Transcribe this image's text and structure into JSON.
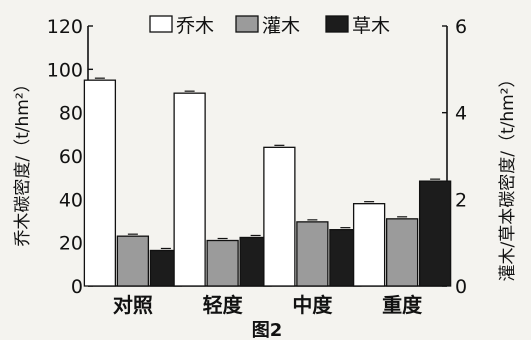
{
  "chart_data": {
    "type": "bar",
    "caption": "图2",
    "categories": [
      "对照",
      "轻度",
      "中度",
      "重度"
    ],
    "series": [
      {
        "name": "乔木",
        "axis": "left",
        "color": "#ffffff",
        "values": [
          95,
          89,
          64,
          38
        ]
      },
      {
        "name": "灌木",
        "axis": "right",
        "color": "#9b9b9b",
        "values": [
          1.15,
          1.05,
          1.48,
          1.55
        ]
      },
      {
        "name": "草木",
        "axis": "right",
        "color": "#1c1c1c",
        "values": [
          0.82,
          1.12,
          1.3,
          2.42
        ]
      }
    ],
    "left_axis": {
      "label": "乔木碳密度/（t/hm²）",
      "min": 0,
      "max": 120,
      "ticks": [
        0,
        20,
        40,
        60,
        80,
        100,
        120
      ]
    },
    "right_axis": {
      "label": "灌木/草本碳密度/（t/hm²）",
      "min": 0,
      "max": 6,
      "ticks": [
        0,
        2,
        4,
        6
      ]
    },
    "legend_position": "top"
  }
}
